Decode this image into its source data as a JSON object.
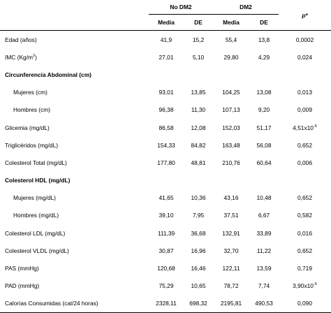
{
  "header": {
    "group1": "No DM2",
    "group2": "DM2",
    "p_label": "p*",
    "media": "Media",
    "de": "DE"
  },
  "rows": [
    {
      "label": "Edad (años)",
      "m1": "41,9",
      "d1": "15,2",
      "m2": "55,4",
      "d2": "13,8",
      "p": "0,0002"
    },
    {
      "label": "IMC (Kg/m",
      "label_sup": "2",
      "label_end": ")",
      "m1": "27,01",
      "d1": "5,10",
      "m2": "29,80",
      "d2": "4,29",
      "p": "0,024"
    },
    {
      "label": "Circunferencia Abdominal (cm)"
    },
    {
      "label": "Mujeres (cm)",
      "m1": "93,01",
      "d1": "13,85",
      "m2": "104,25",
      "d2": "13,08",
      "p": "0,013"
    },
    {
      "label": "Hombres (cm)",
      "m1": "96,38",
      "d1": "11,30",
      "m2": "107,13",
      "d2": "9,20",
      "p": "0,009"
    },
    {
      "label": "Glicemia (mg/dL)",
      "m1": "86,58",
      "d1": "12,08",
      "m2": "152,03",
      "d2": "51,17",
      "p": "4,51x10",
      "p_sup": "-5"
    },
    {
      "label": "Triglicéridos (mg/dL)",
      "m1": "154,33",
      "d1": "84,82",
      "m2": "163,48",
      "d2": "56,08",
      "p": "0,652"
    },
    {
      "label": "Colesterol Total (mg/dL)",
      "m1": "177,80",
      "d1": "48,81",
      "m2": "210,76",
      "d2": "60,64",
      "p": "0,006"
    },
    {
      "label": "Colesterol HDL (mg/dL)"
    },
    {
      "label": "Mujeres (mg/dL)",
      "m1": "41,65",
      "d1": "10,36",
      "m2": "43,16",
      "d2": "10,48",
      "p": "0,652"
    },
    {
      "label": "Hombres (mg/dL)",
      "m1": "39,10",
      "d1": "7,95",
      "m2": "37,51",
      "d2": "6,67",
      "p": "0,582"
    },
    {
      "label": "Colesterol LDL (mg/dL)",
      "m1": "111,39",
      "d1": "36,68",
      "m2": "132,91",
      "d2": "33,89",
      "p": "0,016"
    },
    {
      "label": "Colesterol VLDL (mg/dL)",
      "m1": "30,87",
      "d1": "16,96",
      "m2": "32,70",
      "d2": "11,22",
      "p": "0,652"
    },
    {
      "label": "PAS (mmHg)",
      "m1": "120,68",
      "d1": "16,46",
      "m2": "122,11",
      "d2": "13,59",
      "p": "0,719"
    },
    {
      "label": "PAD (mmHg)",
      "m1": "75,29",
      "d1": "10,65",
      "m2": "78,72",
      "d2": "7,74",
      "p": "3,90x10",
      "p_sup": "-5"
    },
    {
      "label": "Calorías Consumidas (cal/24 horas)",
      "m1": "2328,11",
      "d1": "698,32",
      "m2": "2195,81",
      "d2": "490,53",
      "p": "0,090"
    }
  ]
}
